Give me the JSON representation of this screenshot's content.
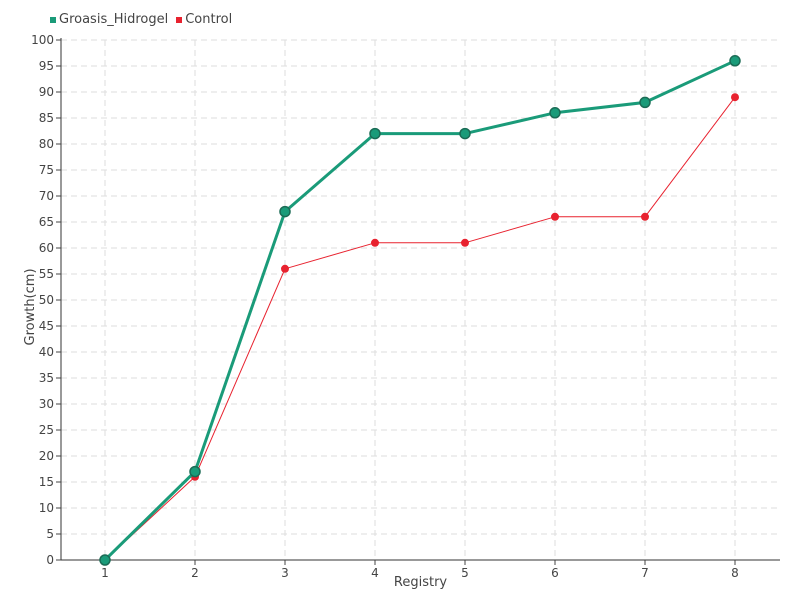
{
  "chart_data": {
    "type": "line",
    "xlabel": "Registry",
    "ylabel": "Growth(cm)",
    "x": [
      1,
      2,
      3,
      4,
      5,
      6,
      7,
      8
    ],
    "ylim": [
      0,
      100
    ],
    "yticks": [
      0,
      5,
      10,
      15,
      20,
      25,
      30,
      35,
      40,
      45,
      50,
      55,
      60,
      65,
      70,
      75,
      80,
      85,
      90,
      95,
      100
    ],
    "grid": true,
    "legend_position": "top-left",
    "series": [
      {
        "name": "Groasis_Hidrogel",
        "color": "#1a9b79",
        "values": [
          0,
          17,
          67,
          82,
          82,
          86,
          88,
          96
        ]
      },
      {
        "name": "Control",
        "color": "#e8222f",
        "values": [
          0,
          16,
          56,
          61,
          61,
          66,
          66,
          89
        ]
      }
    ]
  }
}
